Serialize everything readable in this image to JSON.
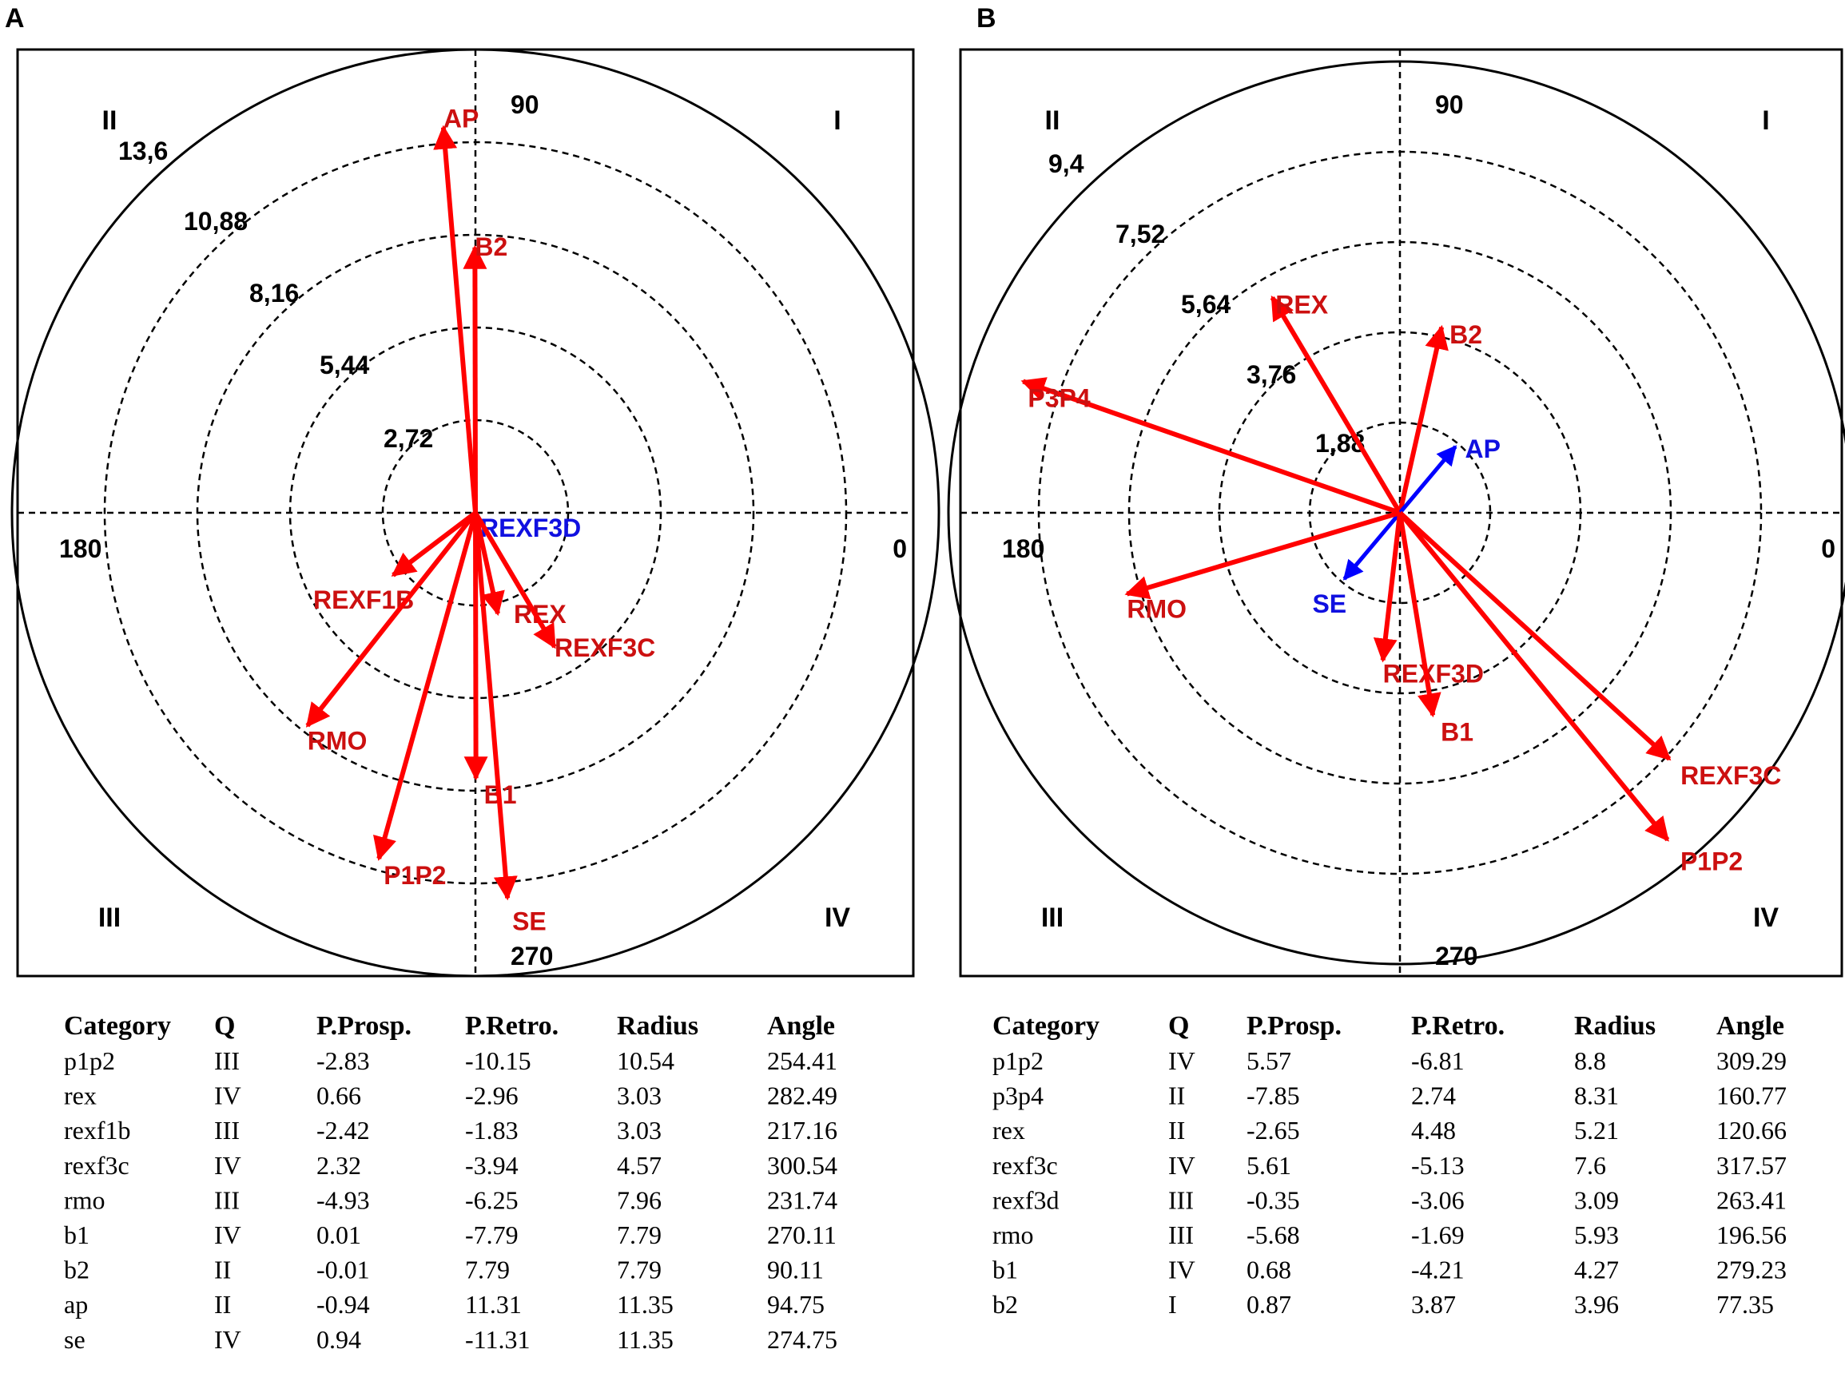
{
  "chart_data": [
    {
      "type": "polar-vector",
      "panel": "A",
      "ring_labels": [
        "2,72",
        "5,44",
        "8,16",
        "10,88",
        "13,6"
      ],
      "rings": [
        2.72,
        5.44,
        8.16,
        10.88,
        13.6
      ],
      "r_max": 13.6,
      "angle_labels": {
        "top": "90",
        "left": "180",
        "right": "0",
        "bottom": "270"
      },
      "quadrant_labels": {
        "top_right": "I",
        "top_left": "II",
        "bottom_left": "III",
        "bottom_right": "IV"
      },
      "vectors": [
        {
          "label": "AP",
          "radius": 11.35,
          "angle": 94.75,
          "color": "#ff0000"
        },
        {
          "label": "B2",
          "radius": 7.79,
          "angle": 90.11,
          "color": "#ff0000"
        },
        {
          "label": "REXF3D",
          "radius": 0,
          "angle": 0,
          "color": "#0000ff"
        },
        {
          "label": "REXF1B",
          "radius": 3.03,
          "angle": 217.16,
          "color": "#ff0000"
        },
        {
          "label": "REX",
          "radius": 3.03,
          "angle": 282.49,
          "color": "#ff0000"
        },
        {
          "label": "REXF3C",
          "radius": 4.57,
          "angle": 300.54,
          "color": "#ff0000"
        },
        {
          "label": "RMO",
          "radius": 7.96,
          "angle": 231.74,
          "color": "#ff0000"
        },
        {
          "label": "B1",
          "radius": 7.79,
          "angle": 270.11,
          "color": "#ff0000"
        },
        {
          "label": "P1P2",
          "radius": 10.54,
          "angle": 254.41,
          "color": "#ff0000"
        },
        {
          "label": "SE",
          "radius": 11.35,
          "angle": 274.75,
          "color": "#ff0000"
        }
      ],
      "table": {
        "columns": [
          "Category",
          "Q",
          "P.Prosp.",
          "P.Retro.",
          "Radius",
          "Angle"
        ],
        "rows": [
          [
            "p1p2",
            "III",
            "-2.83",
            "-10.15",
            "10.54",
            "254.41"
          ],
          [
            "rex",
            "IV",
            "0.66",
            "-2.96",
            "3.03",
            "282.49"
          ],
          [
            "rexf1b",
            "III",
            "-2.42",
            "-1.83",
            "3.03",
            "217.16"
          ],
          [
            "rexf3c",
            "IV",
            "2.32",
            "-3.94",
            "4.57",
            "300.54"
          ],
          [
            "rmo",
            "III",
            "-4.93",
            "-6.25",
            "7.96",
            "231.74"
          ],
          [
            "b1",
            "IV",
            "0.01",
            "-7.79",
            "7.79",
            "270.11"
          ],
          [
            "b2",
            "II",
            "-0.01",
            "7.79",
            "7.79",
            "90.11"
          ],
          [
            "ap",
            "II",
            "-0.94",
            "11.31",
            "11.35",
            "94.75"
          ],
          [
            "se",
            "IV",
            "0.94",
            "-11.31",
            "11.35",
            "274.75"
          ]
        ]
      }
    },
    {
      "type": "polar-vector",
      "panel": "B",
      "ring_labels": [
        "1,88",
        "3,76",
        "5,64",
        "7,52",
        "9,4"
      ],
      "rings": [
        1.88,
        3.76,
        5.64,
        7.52,
        9.4
      ],
      "r_max": 9.4,
      "angle_labels": {
        "top": "90",
        "left": "180",
        "right": "0",
        "bottom": "270"
      },
      "quadrant_labels": {
        "top_right": "I",
        "top_left": "II",
        "bottom_left": "III",
        "bottom_right": "IV"
      },
      "vectors": [
        {
          "label": "P3P4",
          "radius": 8.31,
          "angle": 160.77,
          "color": "#ff0000"
        },
        {
          "label": "REX",
          "radius": 5.21,
          "angle": 120.66,
          "color": "#ff0000"
        },
        {
          "label": "B2",
          "radius": 3.96,
          "angle": 77.35,
          "color": "#ff0000"
        },
        {
          "label": "AP",
          "radius": 1.8,
          "angle": 50,
          "color": "#0000ff"
        },
        {
          "label": "SE",
          "radius": 1.8,
          "angle": 230,
          "color": "#0000ff"
        },
        {
          "label": "RMO",
          "radius": 5.93,
          "angle": 196.56,
          "color": "#ff0000"
        },
        {
          "label": "REXF3D",
          "radius": 3.09,
          "angle": 263.41,
          "color": "#ff0000"
        },
        {
          "label": "B1",
          "radius": 4.27,
          "angle": 279.23,
          "color": "#ff0000"
        },
        {
          "label": "REXF3C",
          "radius": 7.6,
          "angle": 317.57,
          "color": "#ff0000"
        },
        {
          "label": "P1P2",
          "radius": 8.8,
          "angle": 309.29,
          "color": "#ff0000"
        }
      ],
      "table": {
        "columns": [
          "Category",
          "Q",
          "P.Prosp.",
          "P.Retro.",
          "Radius",
          "Angle"
        ],
        "rows": [
          [
            "p1p2",
            "IV",
            "5.57",
            "-6.81",
            "8.8",
            "309.29"
          ],
          [
            "p3p4",
            "II",
            "-7.85",
            "2.74",
            "8.31",
            "160.77"
          ],
          [
            "rex",
            "II",
            "-2.65",
            "4.48",
            "5.21",
            "120.66"
          ],
          [
            "rexf3c",
            "IV",
            "5.61",
            "-5.13",
            "7.6",
            "317.57"
          ],
          [
            "rexf3d",
            "III",
            "-0.35",
            "-3.06",
            "3.09",
            "263.41"
          ],
          [
            "rmo",
            "III",
            "-5.68",
            "-1.69",
            "5.93",
            "196.56"
          ],
          [
            "b1",
            "IV",
            "0.68",
            "-4.21",
            "4.27",
            "279.23"
          ],
          [
            "b2",
            "I",
            "0.87",
            "3.87",
            "3.96",
            "77.35"
          ]
        ]
      }
    }
  ]
}
